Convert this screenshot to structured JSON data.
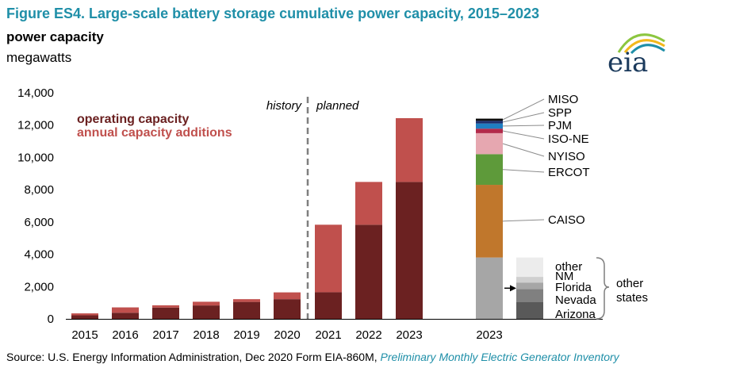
{
  "title": "Figure ES4. Large-scale battery storage cumulative power capacity, 2015–2023",
  "subtitle": "power capacity",
  "units": "megawatts",
  "source_text": "Source: U.S. Energy Information Administration, Dec 2020 Form EIA-860M,",
  "source_link": "Preliminary Monthly Electric Generator Inventory",
  "logo_text": "eia",
  "colors": {
    "operating": "#6b2121",
    "additions": "#c0504d",
    "title": "#1f8fa8"
  },
  "chart_data": {
    "type": "bar",
    "stacked": true,
    "ylim": [
      0,
      14000
    ],
    "yticks": [
      "0",
      "2,000",
      "4,000",
      "6,000",
      "8,000",
      "10,000",
      "12,000",
      "14,000"
    ],
    "ytick_values": [
      0,
      2000,
      4000,
      6000,
      8000,
      10000,
      12000,
      14000
    ],
    "categories": [
      "2015",
      "2016",
      "2017",
      "2018",
      "2019",
      "2020",
      "2021",
      "2022",
      "2023"
    ],
    "series": [
      {
        "name": "operating capacity",
        "color": "#6b2121",
        "values": [
          220,
          380,
          700,
          830,
          1050,
          1220,
          1650,
          5830,
          8480
        ]
      },
      {
        "name": "annual capacity additions",
        "color": "#c0504d",
        "values": [
          120,
          330,
          140,
          230,
          170,
          420,
          4180,
          2650,
          3950
        ]
      }
    ],
    "annotations": {
      "history": "history",
      "planned": "planned"
    },
    "regional_bar": {
      "category": "2023",
      "segments": [
        {
          "name": "other states",
          "value": 3800,
          "color": "#a6a6a6"
        },
        {
          "name": "CAISO",
          "value": 4500,
          "color": "#c0772c"
        },
        {
          "name": "ERCOT",
          "value": 1900,
          "color": "#5e9a3a"
        },
        {
          "name": "NYISO",
          "value": 1300,
          "color": "#e6a7b0"
        },
        {
          "name": "ISO-NE",
          "value": 280,
          "color": "#b22a4a"
        },
        {
          "name": "PJM",
          "value": 320,
          "color": "#1f7ec2"
        },
        {
          "name": "SPP",
          "value": 170,
          "color": "#1c2f6e"
        },
        {
          "name": "MISO",
          "value": 130,
          "color": "#0b0b0b"
        }
      ]
    },
    "other_states_bar": {
      "segments": [
        {
          "name": "Arizona",
          "value": 1050,
          "color": "#595959"
        },
        {
          "name": "Nevada",
          "value": 800,
          "color": "#808080"
        },
        {
          "name": "Florida",
          "value": 400,
          "color": "#a6a6a6"
        },
        {
          "name": "NM",
          "value": 350,
          "color": "#cfcfcf"
        },
        {
          "name": "other",
          "value": 1200,
          "color": "#ececec"
        }
      ],
      "group_label_line1": "other",
      "group_label_line2": "states"
    }
  }
}
